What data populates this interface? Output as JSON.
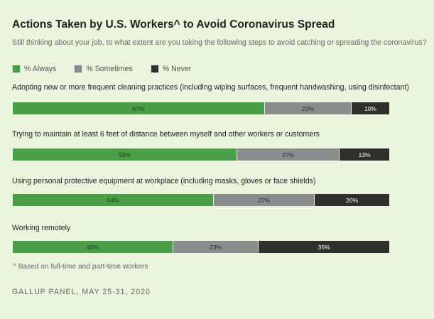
{
  "chart_data": {
    "type": "bar",
    "orientation": "horizontal-stacked",
    "title": "Actions Taken by U.S. Workers^ to Avoid Coronavirus Spread",
    "subtitle": "Still thinking about your job, to what extent are you taking the following steps to avoid catching or spreading the coronavirus?",
    "legend": {
      "placement": "top-left",
      "entries": [
        "% Always",
        "% Sometimes",
        "% Never"
      ]
    },
    "series_colors": [
      "#4a9e47",
      "#8b8d8d",
      "#2f302e"
    ],
    "label_colors": [
      "#1f3a1e",
      "#2a2a2a",
      "#ffffff"
    ],
    "categories": [
      "Adopting new or more frequent cleaning practices (including wiping surfaces, frequent handwashing, using disinfectant)",
      "Trying to maintain at least 6 feet of distance between myself and other workers or customers",
      "Using personal protective equipment at workplace (including masks, gloves or face shields)",
      "Working remotely"
    ],
    "series": [
      {
        "name": "% Always",
        "values": [
          67,
          59,
          54,
          43
        ]
      },
      {
        "name": "% Sometimes",
        "values": [
          23,
          27,
          27,
          23
        ]
      },
      {
        "name": "% Never",
        "values": [
          10,
          13,
          20,
          35
        ]
      }
    ],
    "grid": false
  },
  "note": "^ Based on full-time and part-time workers",
  "source": "GALLUP PANEL, MAY 25-31, 2020"
}
